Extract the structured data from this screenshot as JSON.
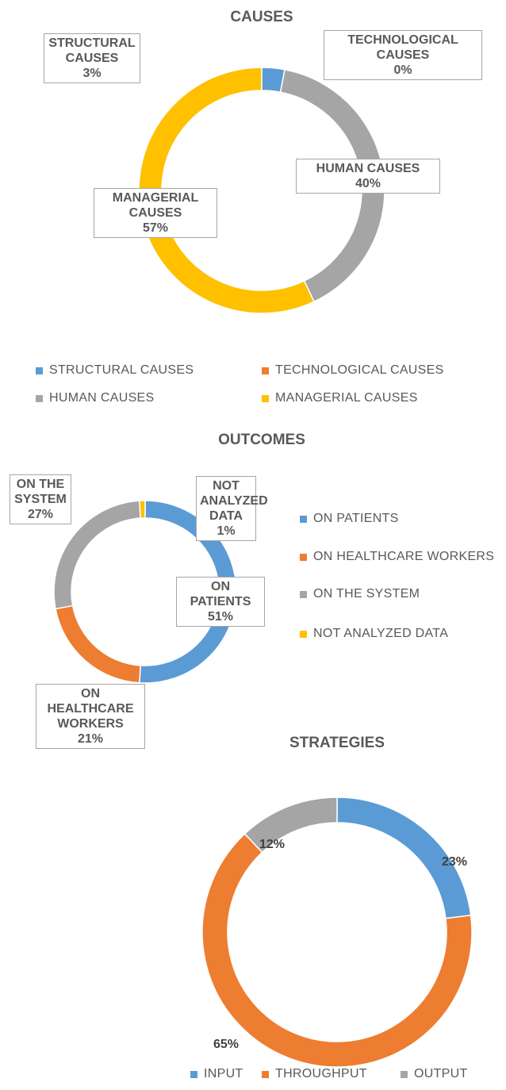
{
  "chart_data": [
    {
      "type": "donut",
      "title": "CAUSES",
      "categories": [
        "STRUCTURAL CAUSES",
        "TECHNOLOGICAL CAUSES",
        "HUMAN CAUSES",
        "MANAGERIAL CAUSES"
      ],
      "values": [
        3,
        0,
        40,
        57
      ],
      "value_labels": [
        "3%",
        "0%",
        "40%",
        "57%"
      ],
      "colors": [
        "#5b9bd5",
        "#ed7d31",
        "#a5a5a5",
        "#ffc000"
      ],
      "legend": "bottom"
    },
    {
      "type": "donut",
      "title": "OUTCOMES",
      "categories": [
        "ON PATIENTS",
        "ON HEALTHCARE WORKERS",
        "ON THE SYSTEM",
        "NOT ANALYZED DATA"
      ],
      "values": [
        51,
        21,
        27,
        1
      ],
      "value_labels": [
        "51%",
        "21%",
        "27%",
        "1%"
      ],
      "colors": [
        "#5b9bd5",
        "#ed7d31",
        "#a5a5a5",
        "#ffc000"
      ],
      "legend": "right"
    },
    {
      "type": "donut",
      "title": "STRATEGIES",
      "categories": [
        "INPUT",
        "THROUGHPUT",
        "OUTPUT"
      ],
      "values": [
        23,
        65,
        12
      ],
      "value_labels": [
        "23%",
        "65%",
        "12%"
      ],
      "colors": [
        "#5b9bd5",
        "#ed7d31",
        "#a5a5a5"
      ],
      "legend": "bottom"
    }
  ]
}
